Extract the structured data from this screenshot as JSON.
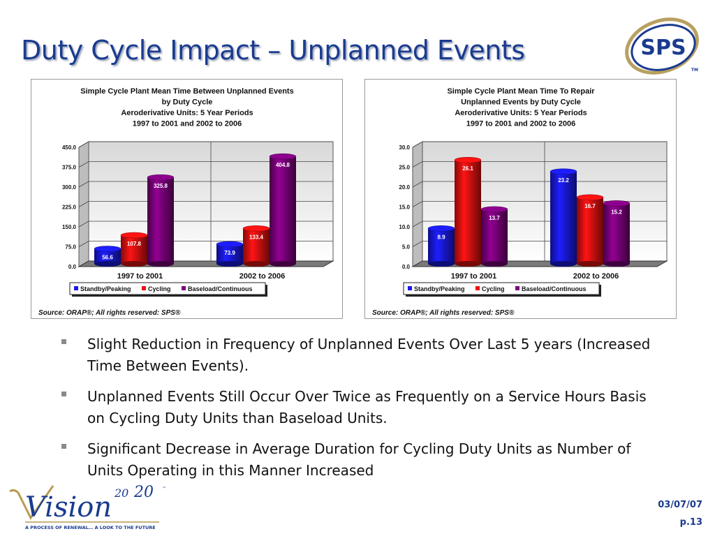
{
  "slide": {
    "title": "Duty Cycle Impact – Unplanned Events",
    "logo_text": "SPS",
    "logo_tm": "TM",
    "footer_date": "03/07/07",
    "footer_page": "p.13",
    "vision_logo": {
      "word": "Vision",
      "year_a": "20",
      "year_b": "20",
      "tm": "™",
      "tagline": "A PROCESS OF RENEWAL… A LOOK TO THE FUTURE"
    },
    "bullets": [
      "Slight Reduction in Frequency of Unplanned Events Over Last 5 years (Increased Time Between Events).",
      "Unplanned Events Still Occur Over Twice as Frequently on a Service Hours Basis on Cycling Duty Units than Baseload Units.",
      "Significant Decrease in Average Duration for Cycling Duty Units as Number of Units Operating in this Manner Increased"
    ],
    "colors": {
      "title": "#1a3b8f",
      "standby": "#1a1aee",
      "cycling": "#ee1111",
      "baseload": "#800080"
    }
  },
  "chart_data": [
    {
      "type": "bar",
      "title_lines": [
        "Simple Cycle Plant Mean Time Between Unplanned Events",
        "by Duty Cycle",
        "Aeroderivative Units: 5 Year Periods",
        "1997 to 2001 and 2002 to 2006"
      ],
      "categories": [
        "1997 to 2001",
        "2002 to 2006"
      ],
      "series": [
        {
          "name": "Standby/Peaking",
          "values": [
            56.6,
            73.9
          ],
          "labels": [
            "56.6",
            "73.9"
          ]
        },
        {
          "name": "Cycling",
          "values": [
            107.8,
            133.4
          ],
          "labels": [
            "107.8",
            "133.4"
          ]
        },
        {
          "name": "Baseload/Continuous",
          "values": [
            325.8,
            404.8
          ],
          "labels": [
            "325.8",
            "404.8"
          ]
        }
      ],
      "ylim": [
        0,
        450
      ],
      "yticks": [
        0,
        75,
        150,
        225,
        300,
        375,
        450
      ],
      "ytick_labels": [
        "0.0",
        "75.0",
        "150.0",
        "225.0",
        "300.0",
        "375.0",
        "450.0"
      ],
      "grid": true,
      "legend": "bottom",
      "source": "Source: ORAP®; All rights reserved: SPS®"
    },
    {
      "type": "bar",
      "title_lines": [
        "Simple Cycle Plant Mean Time To Repair",
        "Unplanned Events by Duty Cycle",
        "Aeroderivative Units: 5 Year Periods",
        "1997 to 2001 and 2002 to 2006"
      ],
      "categories": [
        "1997 to 2001",
        "2002 to 2006"
      ],
      "series": [
        {
          "name": "Standby/Peaking",
          "values": [
            8.9,
            23.2
          ],
          "labels": [
            "8.9",
            "23.2"
          ]
        },
        {
          "name": "Cycling",
          "values": [
            26.1,
            16.7
          ],
          "labels": [
            "26.1",
            "16.7"
          ]
        },
        {
          "name": "Baseload/Continuous",
          "values": [
            13.7,
            15.2
          ],
          "labels": [
            "13.7",
            "15.2"
          ]
        }
      ],
      "ylim": [
        0,
        30
      ],
      "yticks": [
        0,
        5,
        10,
        15,
        20,
        25,
        30
      ],
      "ytick_labels": [
        "0.0",
        "5.0",
        "10.0",
        "15.0",
        "20.0",
        "25.0",
        "30.0"
      ],
      "grid": true,
      "legend": "bottom",
      "source": "Source: ORAP®; All rights reserved: SPS®"
    }
  ]
}
